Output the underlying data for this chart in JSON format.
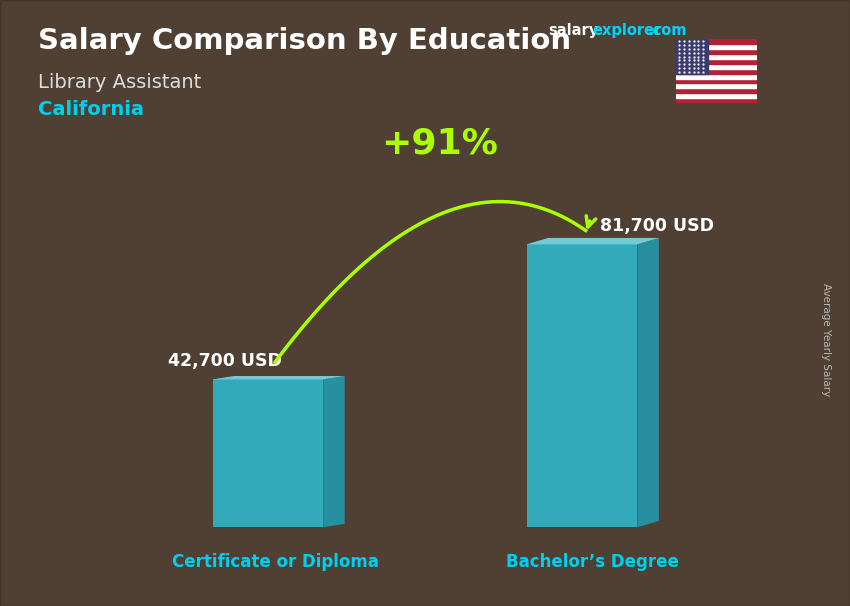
{
  "title_main": "Salary Comparison By Education",
  "subtitle": "Library Assistant",
  "location": "California",
  "categories": [
    "Certificate or Diploma",
    "Bachelor’s Degree"
  ],
  "values": [
    42700,
    81700
  ],
  "value_labels": [
    "42,700 USD",
    "81,700 USD"
  ],
  "pct_change": "+91%",
  "bar_face_color": "#29d4f0",
  "bar_top_color": "#7ee8f8",
  "bar_side_color": "#1aafcc",
  "bar_alpha": 0.72,
  "title_color": "#ffffff",
  "subtitle_color": "#dddddd",
  "location_color": "#00cfef",
  "label_color": "#ffffff",
  "category_color": "#00cfef",
  "pct_color": "#aaff00",
  "arrow_color": "#aaff00",
  "side_label": "Average Yearly Salary",
  "salary_color": "#ffffff",
  "explorer_color": "#00d4ff",
  "bg_color": "#8a7560",
  "overlay_color": "#1a110a",
  "overlay_alpha": 0.52
}
